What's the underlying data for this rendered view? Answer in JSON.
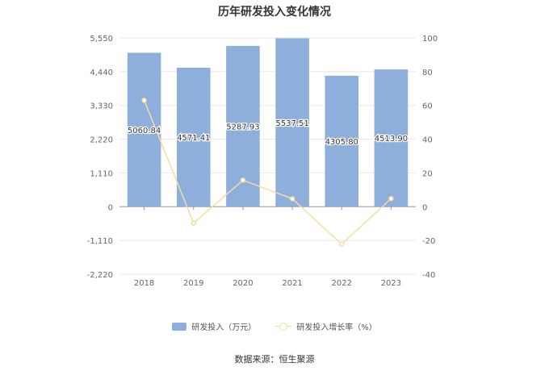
{
  "chart_data": {
    "type": "bar",
    "title": "历年研发投入变化情况",
    "categories": [
      "2018",
      "2019",
      "2020",
      "2021",
      "2022",
      "2023"
    ],
    "series": [
      {
        "name": "研发投入（万元）",
        "type": "bar",
        "axis": "left",
        "values": [
          5060.84,
          4571.41,
          5287.93,
          5537.51,
          4305.8,
          4513.9
        ],
        "labels": [
          "5060.84",
          "4571.41",
          "5287.93",
          "5537.51",
          "4305.80",
          "4513.90"
        ],
        "color": "#8eaedb"
      },
      {
        "name": "研发投入增长率（%）",
        "type": "line",
        "axis": "right",
        "values": [
          63,
          -9.7,
          15.7,
          4.7,
          -22.2,
          4.8
        ],
        "color": "#f7dca2"
      }
    ],
    "y_left": {
      "ticks": [
        5550,
        4440,
        3330,
        2220,
        1110,
        0,
        -1110,
        -2220
      ],
      "tick_labels": [
        "5,550",
        "4,440",
        "3,330",
        "2,220",
        "1,110",
        "0",
        "-1,110",
        "-2,220"
      ],
      "ylim": [
        -2220,
        5550
      ]
    },
    "y_right": {
      "ticks": [
        100,
        80,
        60,
        40,
        20,
        0,
        -20,
        -40
      ],
      "tick_labels": [
        "100",
        "80",
        "60",
        "40",
        "20",
        "0",
        "-20",
        "-40"
      ],
      "ylim": [
        -40,
        100
      ]
    },
    "grid": true,
    "legend_position": "bottom"
  },
  "source": "数据来源：恒生聚源"
}
